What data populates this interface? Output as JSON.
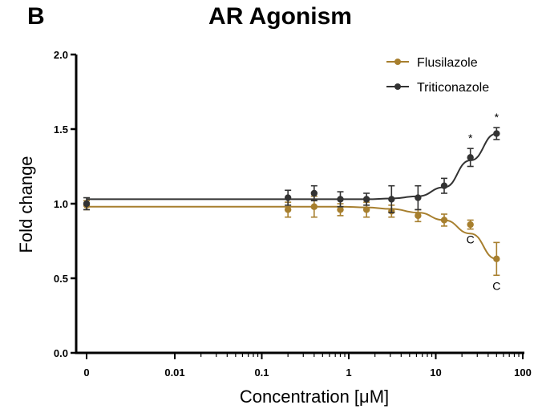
{
  "panel_letter": "B",
  "chart_data": {
    "type": "line",
    "title": "AR Agonism",
    "xlabel": "Concentration [μM]",
    "ylabel": "Fold change",
    "xscale": "log",
    "xticks": [
      {
        "value": 0,
        "label": "0"
      },
      {
        "value": 0.01,
        "label": "0.01"
      },
      {
        "value": 0.1,
        "label": "0.1"
      },
      {
        "value": 1,
        "label": "1"
      },
      {
        "value": 10,
        "label": "10"
      },
      {
        "value": 100,
        "label": "100"
      }
    ],
    "yticks": [
      "0.0",
      "0.5",
      "1.0",
      "1.5",
      "2.0"
    ],
    "ylim": [
      0,
      2
    ],
    "legend_position": "top-right",
    "series": [
      {
        "name": "Flusilazole",
        "color": "#a77f2e",
        "x": [
          0,
          0.2,
          0.4,
          0.8,
          1.6,
          3.1,
          6.25,
          12.5,
          25,
          50
        ],
        "y": [
          0.99,
          0.96,
          0.98,
          0.96,
          0.96,
          0.95,
          0.92,
          0.89,
          0.86,
          0.63
        ],
        "err": [
          0.03,
          0.05,
          0.07,
          0.04,
          0.05,
          0.04,
          0.04,
          0.04,
          0.03,
          0.11
        ],
        "fit": [
          0.98,
          0.98,
          0.98,
          0.98,
          0.975,
          0.965,
          0.94,
          0.89,
          0.8,
          0.63
        ],
        "annotations": [
          {
            "x": 25,
            "label": "C"
          },
          {
            "x": 50,
            "label": "C"
          }
        ]
      },
      {
        "name": "Triticonazole",
        "color": "#333333",
        "x": [
          0,
          0.2,
          0.4,
          0.8,
          1.6,
          3.1,
          6.25,
          12.5,
          25,
          50
        ],
        "y": [
          1.0,
          1.04,
          1.07,
          1.03,
          1.03,
          1.03,
          1.04,
          1.12,
          1.31,
          1.47
        ],
        "err": [
          0.04,
          0.05,
          0.05,
          0.05,
          0.04,
          0.09,
          0.08,
          0.05,
          0.06,
          0.04
        ],
        "fit": [
          1.03,
          1.03,
          1.03,
          1.03,
          1.03,
          1.035,
          1.05,
          1.11,
          1.29,
          1.47
        ],
        "annotations": [
          {
            "x": 25,
            "label": "*"
          },
          {
            "x": 50,
            "label": "*"
          }
        ]
      }
    ]
  }
}
